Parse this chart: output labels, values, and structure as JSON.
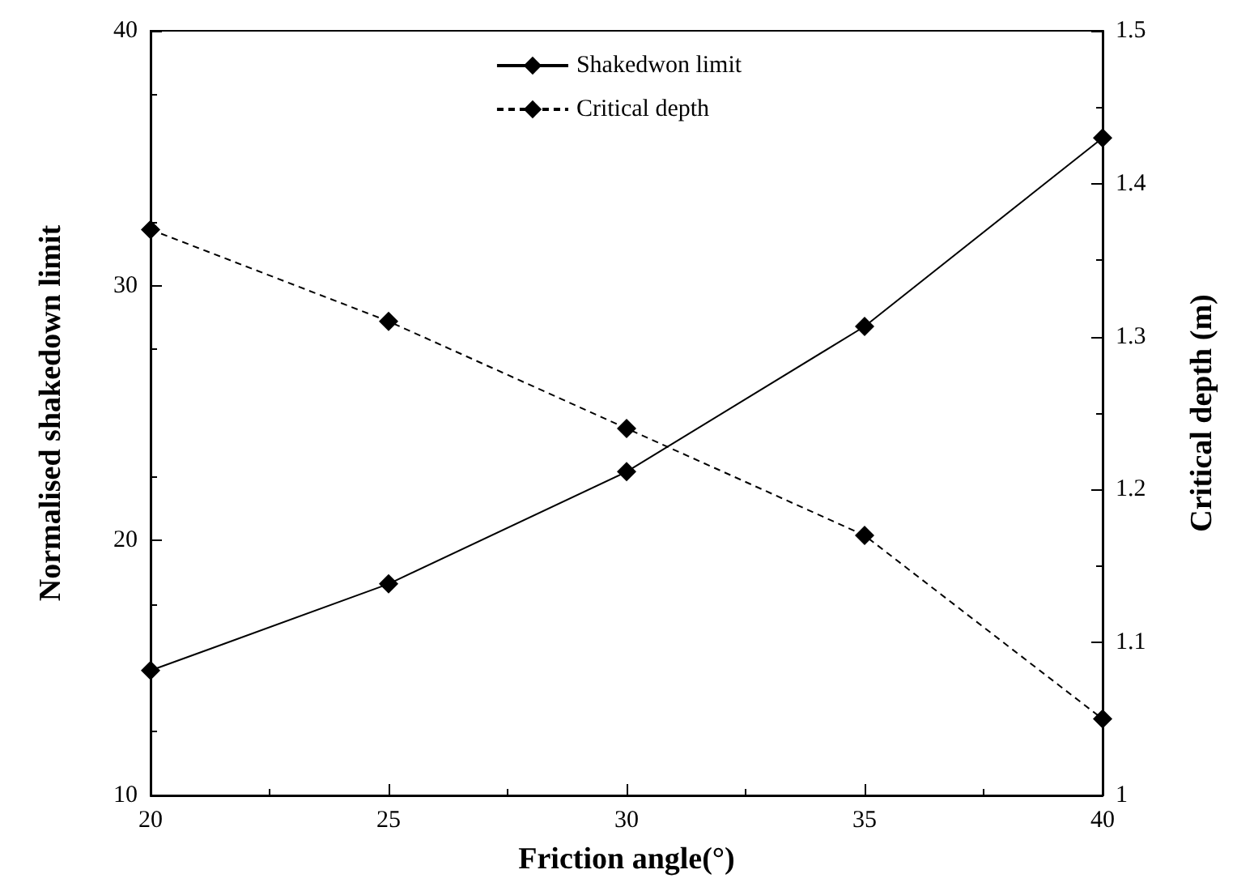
{
  "chart_data": {
    "type": "line",
    "xlabel": "Friction angle(°)",
    "ylabel": "Normalised shakedown limit",
    "y2label": "Critical depth (m)",
    "x": [
      20,
      25,
      30,
      35,
      40
    ],
    "series": [
      {
        "name": "Shakedwon limit",
        "color": "#000000",
        "values": [
          14.9,
          18.3,
          22.7,
          28.4,
          35.8
        ],
        "line_style": "solid"
      },
      {
        "name": "Critical depth",
        "color": "#000000",
        "values": [
          1.37,
          1.31,
          1.24,
          1.17,
          1.05
        ],
        "axis": "y2",
        "line_style": "dashed"
      }
    ],
    "xlim": [
      20,
      40
    ],
    "xticks": [
      20,
      25,
      30,
      35,
      40
    ],
    "ylim": [
      10,
      40
    ],
    "yticks": [
      10,
      20,
      30,
      40
    ],
    "y2lim": [
      1,
      1.5
    ],
    "y2ticks": [
      1,
      1.1,
      1.2,
      1.3,
      1.4,
      1.5
    ],
    "marker": "diamond",
    "legend": "top",
    "grid": false
  }
}
